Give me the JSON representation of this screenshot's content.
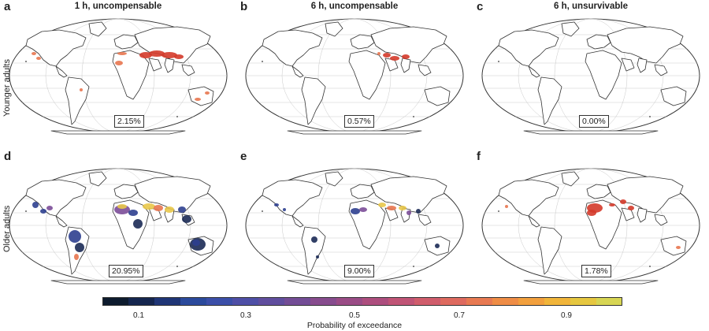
{
  "row_labels": {
    "top": "Younger adults",
    "bottom": "Older adults"
  },
  "panels": [
    {
      "letter": "a",
      "title": "1 h, uncompensable",
      "percentage": "2.15%"
    },
    {
      "letter": "b",
      "title": "6 h, uncompensable",
      "percentage": "0.57%"
    },
    {
      "letter": "c",
      "title": "6 h, unsurvivable",
      "percentage": "0.00%"
    },
    {
      "letter": "d",
      "title": "",
      "percentage": "20.95%"
    },
    {
      "letter": "e",
      "title": "",
      "percentage": "9.00%"
    },
    {
      "letter": "f",
      "title": "",
      "percentage": "1.78%"
    }
  ],
  "colorbar": {
    "title": "Probability of exceedance",
    "ticks": [
      "0.1",
      "0.3",
      "0.5",
      "0.7",
      "0.9"
    ],
    "colors": [
      "#0d1b2e",
      "#15264f",
      "#1f3576",
      "#2b4a9c",
      "#3b4fa8",
      "#4e4fa6",
      "#604e9e",
      "#734d96",
      "#874c8e",
      "#9a4c86",
      "#ad4e7e",
      "#c05476",
      "#d05d6c",
      "#de6a5f",
      "#e87a52",
      "#ef8d46",
      "#f2a03d",
      "#f1b53a",
      "#e6c740",
      "#d7d553"
    ]
  },
  "map_colors": {
    "land": "#ffffff",
    "outline": "#333333",
    "graticule": "#c9c9c9",
    "hot": "#d43a2a",
    "warm": "#e8764f",
    "yellow": "#e9c84a",
    "blue": "#2d3f8f",
    "purple": "#7b4d98",
    "dark": "#1b2a55"
  }
}
